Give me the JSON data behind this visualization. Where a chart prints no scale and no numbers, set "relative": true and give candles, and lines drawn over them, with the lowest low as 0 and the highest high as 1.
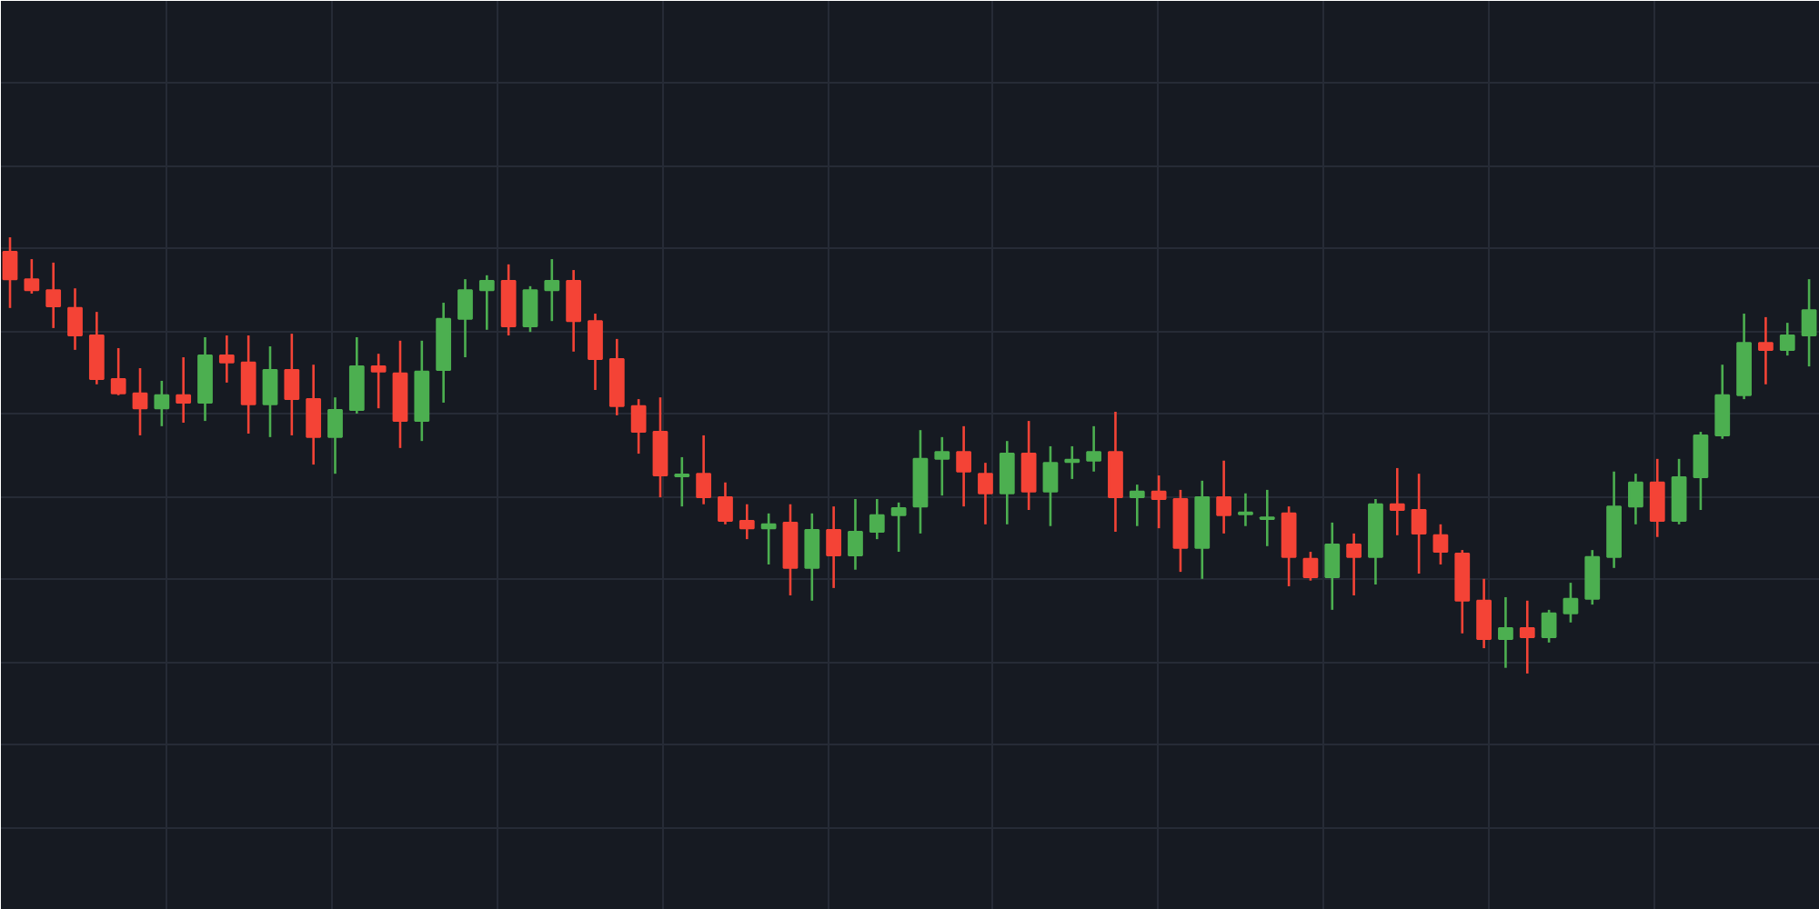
{
  "chart_data": {
    "type": "candlestick",
    "relative": true,
    "grid": true,
    "categories": [
      null,
      null,
      null,
      null,
      null,
      null,
      null,
      null,
      null,
      null,
      null,
      null,
      null,
      null,
      null,
      null,
      null,
      null,
      null,
      null,
      null,
      null,
      null,
      null,
      null,
      null,
      null,
      null,
      null,
      null,
      null,
      null,
      null,
      null,
      null,
      null,
      null,
      null,
      null,
      null,
      null,
      null,
      null,
      null,
      null,
      null,
      null,
      null,
      null,
      null,
      null,
      null,
      null,
      null,
      null,
      null,
      null,
      null,
      null,
      null,
      null,
      null,
      null,
      null,
      null,
      null,
      null,
      null,
      null,
      null,
      null,
      null,
      null,
      null,
      null,
      null,
      null,
      null,
      null,
      null,
      null,
      null,
      null,
      null
    ],
    "ohlc": [
      [
        0.967,
        1,
        0.838,
        0.904
      ],
      [
        0.904,
        0.95,
        0.871,
        0.879
      ],
      [
        0.879,
        0.942,
        0.792,
        0.842
      ],
      [
        0.838,
        0.883,
        0.742,
        0.775
      ],
      [
        0.775,
        0.829,
        0.663,
        0.675
      ],
      [
        0.675,
        0.746,
        0.638,
        0.642
      ],
      [
        0.642,
        0.7,
        0.546,
        0.608
      ],
      [
        0.608,
        0.671,
        0.567,
        0.638
      ],
      [
        0.638,
        0.725,
        0.575,
        0.621
      ],
      [
        0.621,
        0.771,
        0.579,
        0.729
      ],
      [
        0.729,
        0.775,
        0.667,
        0.713
      ],
      [
        0.713,
        0.775,
        0.55,
        0.617
      ],
      [
        0.617,
        0.75,
        0.542,
        0.696
      ],
      [
        0.696,
        0.779,
        0.546,
        0.629
      ],
      [
        0.629,
        0.708,
        0.479,
        0.542
      ],
      [
        0.542,
        0.633,
        0.458,
        0.604
      ],
      [
        0.604,
        0.771,
        0.596,
        0.704
      ],
      [
        0.704,
        0.733,
        0.608,
        0.692
      ],
      [
        0.688,
        0.763,
        0.517,
        0.579
      ],
      [
        0.579,
        0.763,
        0.533,
        0.692
      ],
      [
        0.696,
        0.85,
        0.621,
        0.813
      ],
      [
        0.813,
        0.904,
        0.725,
        0.879
      ],
      [
        0.879,
        0.913,
        0.788,
        0.9
      ],
      [
        0.9,
        0.938,
        0.775,
        0.796
      ],
      [
        0.796,
        0.888,
        0.783,
        0.879
      ],
      [
        0.879,
        0.95,
        0.808,
        0.9
      ],
      [
        0.9,
        0.925,
        0.738,
        0.808
      ],
      [
        0.808,
        0.825,
        0.65,
        0.721
      ],
      [
        0.721,
        0.767,
        0.592,
        0.613
      ],
      [
        0.613,
        0.629,
        0.504,
        0.554
      ],
      [
        0.554,
        0.633,
        0.404,
        0.454
      ],
      [
        0.452,
        0.496,
        0.383,
        0.456
      ],
      [
        0.458,
        0.546,
        0.388,
        0.404
      ],
      [
        0.404,
        0.438,
        0.342,
        0.35
      ],
      [
        0.35,
        0.388,
        0.308,
        0.333
      ],
      [
        0.333,
        0.367,
        0.25,
        0.342
      ],
      [
        0.346,
        0.388,
        0.179,
        0.242
      ],
      [
        0.242,
        0.367,
        0.167,
        0.329
      ],
      [
        0.329,
        0.383,
        0.196,
        0.271
      ],
      [
        0.271,
        0.4,
        0.238,
        0.325
      ],
      [
        0.325,
        0.4,
        0.308,
        0.363
      ],
      [
        0.363,
        0.392,
        0.279,
        0.379
      ],
      [
        0.383,
        0.558,
        0.321,
        0.492
      ],
      [
        0.492,
        0.542,
        0.408,
        0.508
      ],
      [
        0.508,
        0.567,
        0.383,
        0.463
      ],
      [
        0.458,
        0.483,
        0.342,
        0.413
      ],
      [
        0.413,
        0.533,
        0.342,
        0.504
      ],
      [
        0.504,
        0.579,
        0.375,
        0.417
      ],
      [
        0.417,
        0.521,
        0.338,
        0.483
      ],
      [
        0.485,
        0.521,
        0.446,
        0.49
      ],
      [
        0.488,
        0.567,
        0.463,
        0.508
      ],
      [
        0.508,
        0.6,
        0.325,
        0.404
      ],
      [
        0.404,
        0.433,
        0.338,
        0.417
      ],
      [
        0.417,
        0.454,
        0.333,
        0.4
      ],
      [
        0.4,
        0.421,
        0.233,
        0.288
      ],
      [
        0.288,
        0.442,
        0.217,
        0.404
      ],
      [
        0.404,
        0.488,
        0.321,
        0.363
      ],
      [
        0.365,
        0.413,
        0.338,
        0.369
      ],
      [
        0.354,
        0.421,
        0.292,
        0.358
      ],
      [
        0.367,
        0.383,
        0.2,
        0.267
      ],
      [
        0.263,
        0.279,
        0.213,
        0.221
      ],
      [
        0.221,
        0.346,
        0.146,
        0.296
      ],
      [
        0.296,
        0.321,
        0.179,
        0.267
      ],
      [
        0.267,
        0.4,
        0.204,
        0.388
      ],
      [
        0.388,
        0.471,
        0.317,
        0.375
      ],
      [
        0.375,
        0.458,
        0.229,
        0.321
      ],
      [
        0.317,
        0.342,
        0.25,
        0.279
      ],
      [
        0.275,
        0.283,
        0.092,
        0.167
      ],
      [
        0.167,
        0.217,
        0.058,
        0.079
      ],
      [
        0.079,
        0.175,
        0.013,
        0.104
      ],
      [
        0.104,
        0.167,
        0,
        0.083
      ],
      [
        0.083,
        0.146,
        0.071,
        0.138
      ],
      [
        0.138,
        0.208,
        0.117,
        0.171
      ],
      [
        0.171,
        0.283,
        0.158,
        0.267
      ],
      [
        0.267,
        0.463,
        0.242,
        0.383
      ],
      [
        0.383,
        0.458,
        0.342,
        0.438
      ],
      [
        0.438,
        0.492,
        0.313,
        0.35
      ],
      [
        0.35,
        0.492,
        0.342,
        0.45
      ],
      [
        0.45,
        0.554,
        0.375,
        0.546
      ],
      [
        0.546,
        0.708,
        0.538,
        0.638
      ],
      [
        0.638,
        0.825,
        0.629,
        0.758
      ],
      [
        0.758,
        0.817,
        0.663,
        0.742
      ],
      [
        0.742,
        0.804,
        0.729,
        0.775
      ],
      [
        0.775,
        0.904,
        0.704,
        0.833
      ]
    ],
    "colors": [
      "#f44336",
      "#f44336",
      "#f44336",
      "#f44336",
      "#f44336",
      "#f44336",
      "#f44336",
      "#4caf50",
      "#f44336",
      "#4caf50",
      "#f44336",
      "#f44336",
      "#4caf50",
      "#f44336",
      "#f44336",
      "#4caf50",
      "#4caf50",
      "#f44336",
      "#f44336",
      "#4caf50",
      "#4caf50",
      "#4caf50",
      "#4caf50",
      "#f44336",
      "#4caf50",
      "#4caf50",
      "#f44336",
      "#f44336",
      "#f44336",
      "#f44336",
      "#f44336",
      "#4caf50",
      "#f44336",
      "#f44336",
      "#f44336",
      "#4caf50",
      "#f44336",
      "#4caf50",
      "#f44336",
      "#4caf50",
      "#4caf50",
      "#4caf50",
      "#4caf50",
      "#4caf50",
      "#f44336",
      "#f44336",
      "#4caf50",
      "#f44336",
      "#4caf50",
      "#4caf50",
      "#4caf50",
      "#f44336",
      "#4caf50",
      "#f44336",
      "#f44336",
      "#4caf50",
      "#f44336",
      "#4caf50",
      "#4caf50",
      "#f44336",
      "#f44336",
      "#4caf50",
      "#f44336",
      "#4caf50",
      "#f44336",
      "#f44336",
      "#f44336",
      "#f44336",
      "#f44336",
      "#4caf50",
      "#f44336",
      "#4caf50",
      "#4caf50",
      "#4caf50",
      "#4caf50",
      "#4caf50",
      "#f44336",
      "#4caf50",
      "#4caf50",
      "#4caf50",
      "#4caf50",
      "#f44336",
      "#4caf50",
      "#4caf50"
    ]
  }
}
